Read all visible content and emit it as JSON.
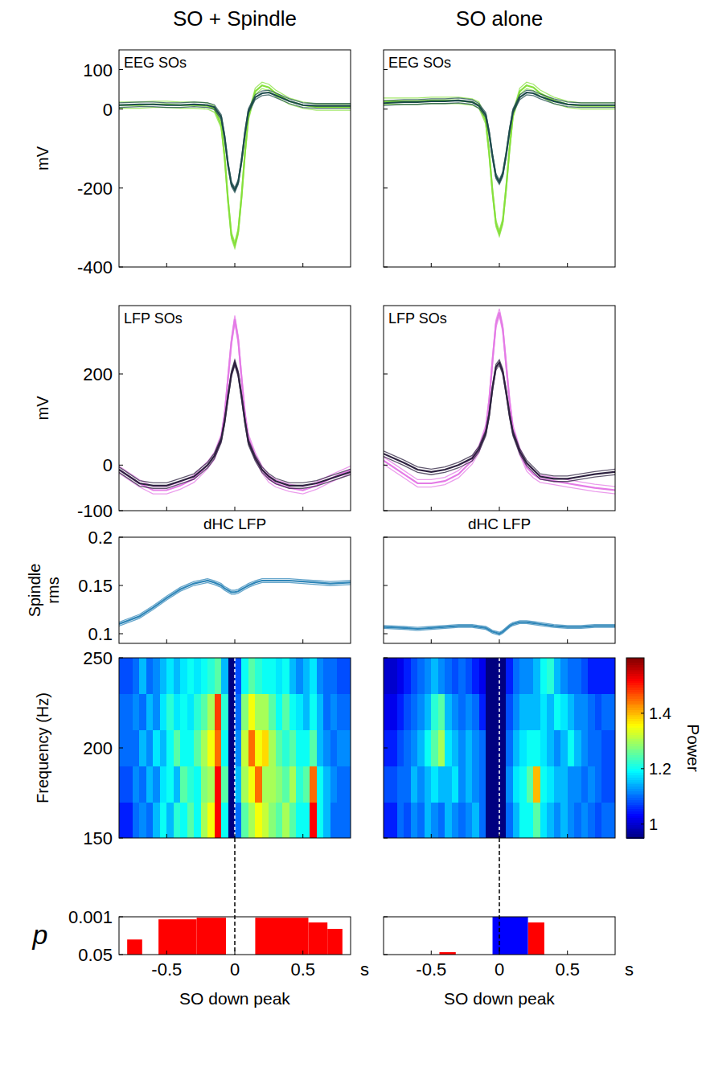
{
  "chart_data": [
    {
      "type": "line",
      "title": "SO + Spindle",
      "subtitle": "EEG SOs",
      "ylabel": "mV",
      "x": [
        -0.85,
        -0.7,
        -0.6,
        -0.5,
        -0.4,
        -0.3,
        -0.2,
        -0.15,
        -0.1,
        -0.075,
        -0.05,
        -0.025,
        0,
        0.025,
        0.05,
        0.075,
        0.1,
        0.15,
        0.2,
        0.25,
        0.3,
        0.4,
        0.5,
        0.6,
        0.7,
        0.85
      ],
      "series": [
        {
          "color": "#86e03c",
          "values": [
            10,
            10,
            12,
            12,
            10,
            10,
            8,
            0,
            -40,
            -120,
            -230,
            -320,
            -345,
            -310,
            -220,
            -110,
            -20,
            45,
            60,
            55,
            40,
            20,
            10,
            5,
            5,
            5
          ],
          "error": 8
        },
        {
          "color": "#1d4b4c",
          "values": [
            10,
            12,
            12,
            10,
            10,
            12,
            10,
            5,
            -20,
            -70,
            -140,
            -190,
            -205,
            -185,
            -130,
            -60,
            -5,
            30,
            40,
            42,
            35,
            20,
            10,
            8,
            8,
            8
          ],
          "error": 6
        }
      ],
      "xlim": [
        -0.85,
        0.85
      ],
      "ylim": [
        -400,
        150
      ],
      "xticks": [
        -0.5,
        0,
        0.5
      ],
      "yticks": [
        -400,
        -200,
        0,
        100
      ],
      "tick_labels": "y"
    },
    {
      "type": "line",
      "subtitle": "LFP SOs",
      "ylabel": "mV",
      "x": [
        -0.85,
        -0.7,
        -0.6,
        -0.5,
        -0.4,
        -0.3,
        -0.2,
        -0.15,
        -0.1,
        -0.075,
        -0.05,
        -0.025,
        0,
        0.025,
        0.05,
        0.075,
        0.1,
        0.15,
        0.2,
        0.25,
        0.3,
        0.4,
        0.5,
        0.6,
        0.7,
        0.85
      ],
      "series": [
        {
          "color": "#e47be6",
          "values": [
            -10,
            -40,
            -55,
            -55,
            -45,
            -30,
            0,
            20,
            60,
            110,
            190,
            270,
            320,
            275,
            190,
            110,
            60,
            20,
            -10,
            -30,
            -40,
            -50,
            -55,
            -45,
            -30,
            -10
          ],
          "error": 8
        },
        {
          "color": "#2e2240",
          "values": [
            -10,
            -40,
            -45,
            -45,
            -35,
            -25,
            0,
            20,
            55,
            95,
            150,
            200,
            225,
            200,
            150,
            95,
            50,
            15,
            -10,
            -25,
            -35,
            -45,
            -45,
            -40,
            -30,
            -15
          ],
          "error": 6
        }
      ],
      "xlim": [
        -0.85,
        0.85
      ],
      "ylim": [
        -100,
        350
      ],
      "xticks": [
        -0.5,
        0,
        0.5
      ],
      "yticks": [
        -100,
        0,
        200
      ],
      "tick_labels": "y"
    },
    {
      "type": "line",
      "title": "dHC LFP",
      "ylabel": "Spindle rms",
      "x": [
        -0.85,
        -0.7,
        -0.6,
        -0.5,
        -0.4,
        -0.3,
        -0.2,
        -0.15,
        -0.1,
        -0.075,
        -0.05,
        -0.025,
        0,
        0.025,
        0.05,
        0.075,
        0.1,
        0.15,
        0.2,
        0.25,
        0.3,
        0.4,
        0.5,
        0.6,
        0.7,
        0.85
      ],
      "series": [
        {
          "color": "#2f86b8",
          "values": [
            0.11,
            0.118,
            0.127,
            0.137,
            0.146,
            0.152,
            0.155,
            0.153,
            0.15,
            0.147,
            0.145,
            0.143,
            0.143,
            0.144,
            0.146,
            0.148,
            0.15,
            0.153,
            0.155,
            0.155,
            0.155,
            0.155,
            0.154,
            0.153,
            0.152,
            0.153
          ],
          "error": 0.002
        }
      ],
      "xlim": [
        -0.85,
        0.85
      ],
      "ylim": [
        0.09,
        0.2
      ],
      "xticks": [
        -0.5,
        0,
        0.5
      ],
      "yticks": [
        0.1,
        0.15,
        0.2
      ],
      "tick_labels": "y"
    },
    {
      "type": "heatmap",
      "ylabel": "Frequency (Hz)",
      "x": [
        -0.85,
        -0.8,
        -0.75,
        -0.7,
        -0.65,
        -0.6,
        -0.55,
        -0.5,
        -0.45,
        -0.4,
        -0.35,
        -0.3,
        -0.25,
        -0.2,
        -0.15,
        -0.1,
        -0.05,
        0,
        0.05,
        0.1,
        0.15,
        0.2,
        0.25,
        0.3,
        0.35,
        0.4,
        0.45,
        0.5,
        0.55,
        0.6,
        0.65,
        0.7,
        0.75,
        0.8,
        0.85
      ],
      "y": [
        150,
        170,
        190,
        210,
        230,
        250
      ],
      "cells": [
        [
          1.05,
          1.05,
          1.1,
          1.12,
          1.1,
          1.15,
          1.2,
          1.15,
          1.22,
          1.2,
          1.25,
          1.2,
          1.3,
          1.35,
          1.52,
          1.2,
          0.9,
          1.1,
          1.25,
          1.3,
          1.35,
          1.32,
          1.28,
          1.25,
          1.3,
          1.25,
          1.2,
          1.2,
          1.52,
          1.2,
          1.15,
          1.1,
          1.1,
          1.1
        ],
        [
          1.08,
          1.08,
          1.12,
          1.1,
          1.15,
          1.12,
          1.18,
          1.2,
          1.15,
          1.25,
          1.22,
          1.2,
          1.28,
          1.3,
          1.52,
          1.25,
          0.9,
          1.15,
          1.3,
          1.35,
          1.45,
          1.3,
          1.3,
          1.28,
          1.25,
          1.3,
          1.22,
          1.25,
          1.45,
          1.2,
          1.15,
          1.12,
          1.1,
          1.1
        ],
        [
          1.1,
          1.1,
          1.1,
          1.15,
          1.12,
          1.18,
          1.15,
          1.2,
          1.25,
          1.2,
          1.2,
          1.25,
          1.3,
          1.35,
          1.45,
          1.2,
          0.92,
          1.12,
          1.32,
          1.45,
          1.35,
          1.38,
          1.3,
          1.25,
          1.22,
          1.25,
          1.2,
          1.2,
          1.25,
          1.15,
          1.12,
          1.1,
          1.12,
          1.12
        ],
        [
          1.1,
          1.1,
          1.12,
          1.1,
          1.15,
          1.12,
          1.18,
          1.22,
          1.18,
          1.2,
          1.18,
          1.22,
          1.25,
          1.3,
          1.48,
          1.22,
          0.9,
          1.1,
          1.28,
          1.35,
          1.3,
          1.3,
          1.25,
          1.2,
          1.25,
          1.2,
          1.18,
          1.15,
          1.2,
          1.15,
          1.1,
          1.12,
          1.1,
          1.1
        ],
        [
          1.08,
          1.08,
          1.1,
          1.15,
          1.1,
          1.12,
          1.15,
          1.18,
          1.15,
          1.18,
          1.2,
          1.18,
          1.2,
          1.22,
          1.25,
          1.15,
          0.9,
          1.08,
          1.2,
          1.25,
          1.22,
          1.2,
          1.2,
          1.18,
          1.2,
          1.15,
          1.12,
          1.15,
          1.18,
          1.12,
          1.1,
          1.1,
          1.08,
          1.08
        ]
      ],
      "color_range": [
        0.95,
        1.6
      ],
      "vline": 0,
      "xlim": [
        -0.85,
        0.85
      ],
      "ylim": [
        150,
        250
      ],
      "xticks": [
        -0.5,
        0,
        0.5
      ],
      "yticks": [
        150,
        200,
        250
      ],
      "tick_labels": "y"
    },
    {
      "type": "bar",
      "ylabel": "p",
      "xlabel": "SO down peak",
      "xunit": "s",
      "series": [
        {
          "color": "#ff0000",
          "x0": [
            -0.79,
            -0.56,
            -0.28,
            0.15,
            0.54,
            0.68
          ],
          "x1": [
            -0.68,
            -0.28,
            -0.065,
            0.54,
            0.68,
            0.79
          ],
          "values": [
            0.0105,
            0.0013,
            0.0011,
            0.0011,
            0.0018,
            0.0035
          ]
        }
      ],
      "log": "y",
      "vline": 0,
      "xlim": [
        -0.85,
        0.85
      ],
      "ylim": [
        0.05,
        0.001
      ],
      "xticks": [
        -0.5,
        0,
        0.5
      ],
      "yticks": [
        0.001,
        0.05
      ]
    },
    {
      "type": "line",
      "title": "SO alone",
      "subtitle": "EEG SOs",
      "x": [
        -0.85,
        -0.7,
        -0.6,
        -0.5,
        -0.4,
        -0.3,
        -0.2,
        -0.15,
        -0.1,
        -0.075,
        -0.05,
        -0.025,
        0,
        0.025,
        0.05,
        0.075,
        0.1,
        0.15,
        0.2,
        0.25,
        0.3,
        0.4,
        0.5,
        0.6,
        0.7,
        0.85
      ],
      "series": [
        {
          "color": "#86e03c",
          "values": [
            20,
            20,
            20,
            22,
            22,
            22,
            18,
            10,
            -30,
            -110,
            -210,
            -290,
            -315,
            -285,
            -200,
            -100,
            -15,
            45,
            60,
            55,
            40,
            22,
            12,
            8,
            8,
            8
          ],
          "error": 8
        },
        {
          "color": "#1d4b4c",
          "values": [
            15,
            18,
            18,
            20,
            20,
            22,
            18,
            8,
            -15,
            -60,
            -120,
            -170,
            -185,
            -165,
            -115,
            -55,
            -5,
            30,
            42,
            40,
            32,
            20,
            12,
            10,
            10,
            10
          ],
          "error": 6
        }
      ],
      "xlim": [
        -0.85,
        0.85
      ],
      "ylim": [
        -400,
        150
      ],
      "xticks": [
        -0.5,
        0,
        0.5
      ],
      "yticks": [
        -400,
        -200,
        0,
        100
      ],
      "tick_labels": false
    },
    {
      "type": "line",
      "subtitle": "LFP SOs",
      "x": [
        -0.85,
        -0.7,
        -0.6,
        -0.5,
        -0.4,
        -0.3,
        -0.2,
        -0.15,
        -0.1,
        -0.075,
        -0.05,
        -0.025,
        0,
        0.025,
        0.05,
        0.075,
        0.1,
        0.15,
        0.2,
        0.25,
        0.3,
        0.4,
        0.5,
        0.6,
        0.7,
        0.85
      ],
      "series": [
        {
          "color": "#e47be6",
          "values": [
            10,
            -20,
            -40,
            -40,
            -35,
            -20,
            10,
            35,
            80,
            140,
            230,
            310,
            335,
            300,
            220,
            140,
            80,
            30,
            -5,
            -20,
            -30,
            -35,
            -40,
            -45,
            -50,
            -55
          ],
          "error": 8
        },
        {
          "color": "#2e2240",
          "values": [
            25,
            5,
            -10,
            -15,
            -10,
            0,
            15,
            35,
            70,
            110,
            170,
            215,
            225,
            205,
            160,
            110,
            70,
            30,
            5,
            -10,
            -25,
            -30,
            -30,
            -25,
            -20,
            -15
          ],
          "error": 6
        }
      ],
      "xlim": [
        -0.85,
        0.85
      ],
      "ylim": [
        -100,
        350
      ],
      "xticks": [
        -0.5,
        0,
        0.5
      ],
      "yticks": [
        -100,
        0,
        200
      ],
      "tick_labels": false
    },
    {
      "type": "line",
      "title": "dHC LFP",
      "x": [
        -0.85,
        -0.7,
        -0.6,
        -0.5,
        -0.4,
        -0.3,
        -0.2,
        -0.15,
        -0.1,
        -0.075,
        -0.05,
        -0.025,
        0,
        0.025,
        0.05,
        0.075,
        0.1,
        0.15,
        0.2,
        0.25,
        0.3,
        0.4,
        0.5,
        0.6,
        0.7,
        0.85
      ],
      "series": [
        {
          "color": "#2f86b8",
          "values": [
            0.107,
            0.106,
            0.105,
            0.106,
            0.107,
            0.108,
            0.108,
            0.107,
            0.106,
            0.104,
            0.102,
            0.101,
            0.1,
            0.102,
            0.105,
            0.108,
            0.11,
            0.112,
            0.112,
            0.111,
            0.11,
            0.108,
            0.107,
            0.107,
            0.108,
            0.108
          ],
          "error": 0.0015
        }
      ],
      "xlim": [
        -0.85,
        0.85
      ],
      "ylim": [
        0.09,
        0.2
      ],
      "xticks": [
        -0.5,
        0,
        0.5
      ],
      "yticks": [
        0.1,
        0.15,
        0.2
      ],
      "tick_labels": false
    },
    {
      "type": "heatmap",
      "x": [
        -0.85,
        -0.8,
        -0.75,
        -0.7,
        -0.65,
        -0.6,
        -0.55,
        -0.5,
        -0.45,
        -0.4,
        -0.35,
        -0.3,
        -0.25,
        -0.2,
        -0.15,
        -0.1,
        -0.05,
        0,
        0.05,
        0.1,
        0.15,
        0.2,
        0.25,
        0.3,
        0.35,
        0.4,
        0.45,
        0.5,
        0.55,
        0.6,
        0.65,
        0.7,
        0.75,
        0.8,
        0.85
      ],
      "y": [
        150,
        170,
        190,
        210,
        230,
        250
      ],
      "cells": [
        [
          1.05,
          1.05,
          1.1,
          1.08,
          1.12,
          1.1,
          1.15,
          1.12,
          1.1,
          1.15,
          1.12,
          1.1,
          1.12,
          1.15,
          1.1,
          0.95,
          0.9,
          0.92,
          1.1,
          1.15,
          1.2,
          1.2,
          1.25,
          1.18,
          1.15,
          1.12,
          1.15,
          1.12,
          1.1,
          1.12,
          1.1,
          1.08,
          1.1,
          1.1
        ],
        [
          1.08,
          1.08,
          1.1,
          1.1,
          1.15,
          1.12,
          1.15,
          1.18,
          1.15,
          1.15,
          1.18,
          1.12,
          1.15,
          1.12,
          1.1,
          0.92,
          0.9,
          0.92,
          1.12,
          1.18,
          1.2,
          1.25,
          1.4,
          1.2,
          1.18,
          1.15,
          1.15,
          1.12,
          1.12,
          1.1,
          1.12,
          1.1,
          1.08,
          1.08
        ],
        [
          1.05,
          1.05,
          1.08,
          1.1,
          1.12,
          1.15,
          1.2,
          1.25,
          1.3,
          1.18,
          1.15,
          1.12,
          1.15,
          1.12,
          1.1,
          0.92,
          0.9,
          0.92,
          1.1,
          1.15,
          1.18,
          1.2,
          1.2,
          1.18,
          1.15,
          1.12,
          1.15,
          1.2,
          1.15,
          1.12,
          1.1,
          1.1,
          1.08,
          1.08
        ],
        [
          1.02,
          1.02,
          1.05,
          1.08,
          1.1,
          1.12,
          1.15,
          1.22,
          1.25,
          1.15,
          1.12,
          1.1,
          1.12,
          1.1,
          1.05,
          0.9,
          0.9,
          0.92,
          1.08,
          1.12,
          1.15,
          1.15,
          1.15,
          1.18,
          1.15,
          1.2,
          1.18,
          1.15,
          1.12,
          1.12,
          1.1,
          1.08,
          1.1,
          1.1
        ],
        [
          1.0,
          1.0,
          1.02,
          1.05,
          1.08,
          1.1,
          1.12,
          1.15,
          1.12,
          1.1,
          1.08,
          1.1,
          1.08,
          1.05,
          1.02,
          0.9,
          0.9,
          0.92,
          1.05,
          1.1,
          1.12,
          1.12,
          1.15,
          1.2,
          1.22,
          1.15,
          1.12,
          1.1,
          1.1,
          1.08,
          1.05,
          1.05,
          1.05,
          1.05
        ]
      ],
      "color_range": [
        0.95,
        1.6
      ],
      "color_ticks": [
        1,
        1.2,
        1.4
      ],
      "color_label": "Power",
      "vline": 0,
      "xlim": [
        -0.85,
        0.85
      ],
      "ylim": [
        150,
        250
      ],
      "xticks": [
        -0.5,
        0,
        0.5
      ],
      "yticks": [
        150,
        200,
        250
      ],
      "tick_labels": false
    },
    {
      "type": "bar",
      "xlabel": "SO down peak",
      "xunit": "s",
      "series": [
        {
          "color": "#ff0000",
          "x0": [
            -0.44,
            0.21
          ],
          "x1": [
            -0.32,
            0.33
          ],
          "values": [
            0.039,
            0.0018
          ]
        },
        {
          "color": "#0000ff",
          "x0": [
            -0.05
          ],
          "x1": [
            0.21
          ],
          "values": [
            0.001
          ]
        }
      ],
      "log": "y",
      "vline": 0,
      "xlim": [
        -0.85,
        0.85
      ],
      "ylim": [
        0.05,
        0.001
      ],
      "xticks": [
        -0.5,
        0,
        0.5
      ],
      "yticks": [
        0.001,
        0.05
      ],
      "tick_labels": "x"
    }
  ]
}
